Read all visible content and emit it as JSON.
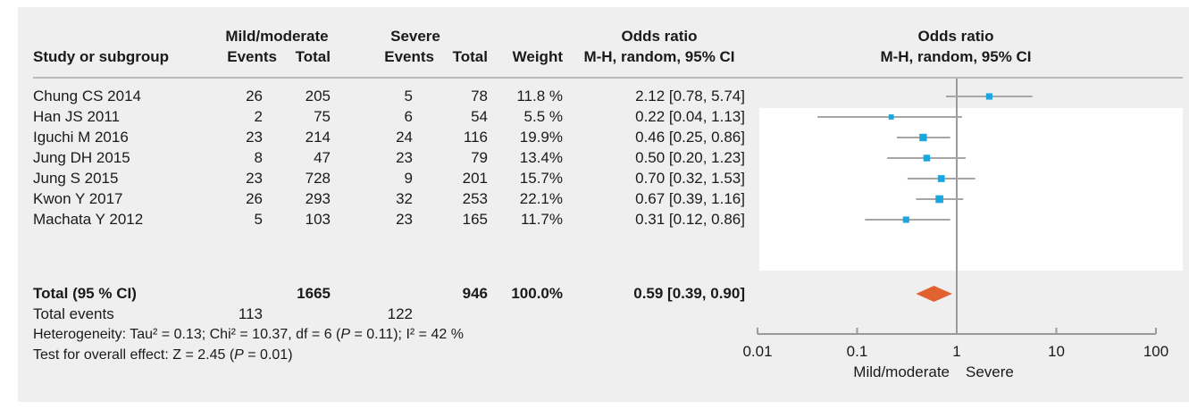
{
  "header": {
    "group1": "Mild/moderate",
    "group2": "Severe",
    "study_label": "Study or subgroup",
    "events": "Events",
    "total": "Total",
    "weight": "Weight",
    "or_title": "Odds ratio",
    "or_method": "M-H, random, 95% CI",
    "plot_title": "Odds ratio",
    "plot_method": "M-H, random, 95% CI"
  },
  "studies": [
    {
      "name": "Chung CS 2014",
      "e1": "26",
      "t1": "205",
      "e2": "5",
      "t2": "78",
      "weight": "11.8 %",
      "or_text": "2.12 [0.78, 5.74]"
    },
    {
      "name": "Han JS 2011",
      "e1": "2",
      "t1": "75",
      "e2": "6",
      "t2": "54",
      "weight": "5.5 %",
      "or_text": "0.22 [0.04, 1.13]"
    },
    {
      "name": "Iguchi M 2016",
      "e1": "23",
      "t1": "214",
      "e2": "24",
      "t2": "116",
      "weight": "19.9%",
      "or_text": "0.46 [0.25, 0.86]"
    },
    {
      "name": "Jung DH 2015",
      "e1": "8",
      "t1": "47",
      "e2": "23",
      "t2": "79",
      "weight": "13.4%",
      "or_text": "0.50 [0.20, 1.23]"
    },
    {
      "name": "Jung S 2015",
      "e1": "23",
      "t1": "728",
      "e2": "9",
      "t2": "201",
      "weight": "15.7%",
      "or_text": "0.70 [0.32, 1.53]"
    },
    {
      "name": "Kwon Y 2017",
      "e1": "26",
      "t1": "293",
      "e2": "32",
      "t2": "253",
      "weight": "22.1%",
      "or_text": "0.67 [0.39, 1.16]"
    },
    {
      "name": "Machata Y 2012",
      "e1": "5",
      "t1": "103",
      "e2": "23",
      "t2": "165",
      "weight": "11.7%",
      "or_text": "0.31 [0.12, 0.86]"
    }
  ],
  "total": {
    "label": "Total (95 % CI)",
    "t1": "1665",
    "t2": "946",
    "weight": "100.0%",
    "or_text": "0.59 [0.39, 0.90]"
  },
  "total_events": {
    "label": "Total events",
    "e1": "113",
    "e2": "122"
  },
  "heterogeneity": {
    "prefix": "Heterogeneity: Tau² = 0.13; Chi² = 10.37, df = 6 (",
    "p_symbol": "P",
    "p_value": " = 0.11); I² = 42 %"
  },
  "overall": {
    "prefix": "Test for overall effect: Z = 2.45 (",
    "p_symbol": "P",
    "p_value": " = 0.01)"
  },
  "colors": {
    "background": "#efefef",
    "plot_background": "#ffffff",
    "ci_line": "#a6a6a6",
    "point": "#1aa7de",
    "diamond": "#e0622f",
    "axis": "#9a9a9a"
  },
  "chart_data": {
    "type": "scatter",
    "title": "Odds ratio",
    "subtitle": "M-H, random, 95% CI",
    "x_scale": "log",
    "xlim": [
      0.01,
      100
    ],
    "x_ticks": [
      0.01,
      0.1,
      1,
      10,
      100
    ],
    "x_tick_labels": [
      "0.01",
      "0.1",
      "1",
      "10",
      "100"
    ],
    "reference_line": 1,
    "left_label": "Mild/moderate",
    "right_label": "Severe",
    "points": [
      {
        "study": "Chung CS 2014",
        "or": 2.12,
        "lower": 0.78,
        "upper": 5.74,
        "weight": 11.8
      },
      {
        "study": "Han JS 2011",
        "or": 0.22,
        "lower": 0.04,
        "upper": 1.13,
        "weight": 5.5
      },
      {
        "study": "Iguchi M 2016",
        "or": 0.46,
        "lower": 0.25,
        "upper": 0.86,
        "weight": 19.9
      },
      {
        "study": "Jung DH 2015",
        "or": 0.5,
        "lower": 0.2,
        "upper": 1.23,
        "weight": 13.4
      },
      {
        "study": "Jung S 2015",
        "or": 0.7,
        "lower": 0.32,
        "upper": 1.53,
        "weight": 15.7
      },
      {
        "study": "Kwon Y 2017",
        "or": 0.67,
        "lower": 0.39,
        "upper": 1.16,
        "weight": 22.1
      },
      {
        "study": "Machata Y 2012",
        "or": 0.31,
        "lower": 0.12,
        "upper": 0.86,
        "weight": 11.7
      }
    ],
    "pooled": {
      "label": "Total (95 % CI)",
      "or": 0.59,
      "lower": 0.39,
      "upper": 0.9
    }
  }
}
